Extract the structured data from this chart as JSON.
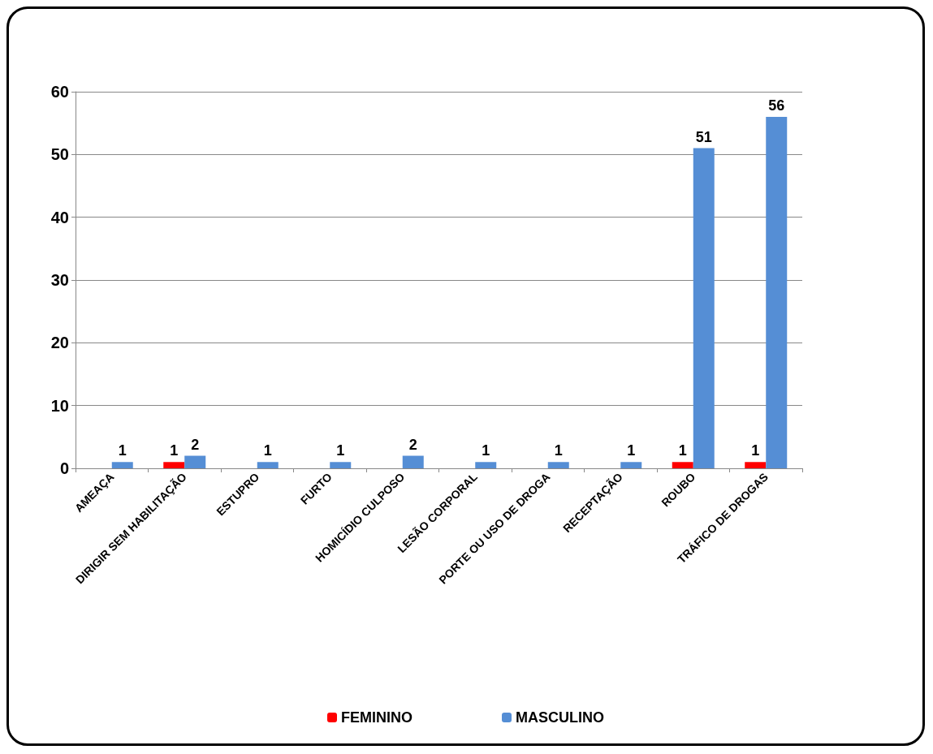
{
  "chart_data": {
    "type": "bar",
    "categories": [
      "AMEAÇA",
      "DIRIGIR SEM HABILITAÇÃO",
      "ESTUPRO",
      "FURTO",
      "HOMICÍDIO CULPOSO",
      "LESÃO CORPORAL",
      "PORTE OU USO DE DROGA",
      "RECEPTAÇÃO",
      "ROUBO",
      "TRÁFICO DE DROGAS"
    ],
    "series": [
      {
        "name": "FEMININO",
        "color": "#ff0000",
        "values": [
          null,
          1,
          null,
          null,
          null,
          null,
          null,
          null,
          1,
          1
        ]
      },
      {
        "name": "MASCULINO",
        "color": "#558ed5",
        "values": [
          1,
          2,
          1,
          1,
          2,
          1,
          1,
          1,
          51,
          56
        ]
      }
    ],
    "ylim": [
      0,
      60
    ],
    "yticks": [
      0,
      10,
      20,
      30,
      40,
      50,
      60
    ],
    "grid": "y",
    "legend": "bottom",
    "data_labels": true
  }
}
